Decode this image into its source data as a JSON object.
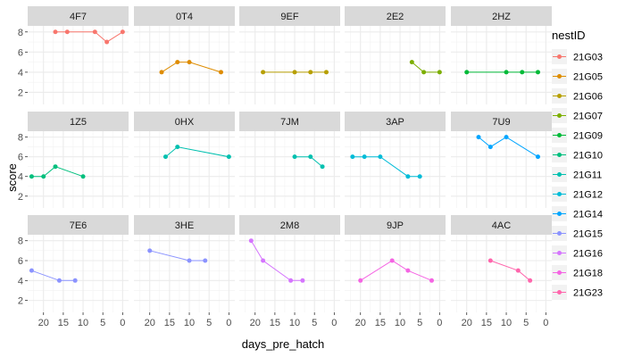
{
  "chart_data": {
    "type": "line",
    "facet_layout": "3 rows x 5 columns",
    "xlabel": "days_pre_hatch",
    "ylabel": "score",
    "x_reversed": true,
    "xlim": [
      24,
      -1.5
    ],
    "ylim": [
      0.8,
      8.6
    ],
    "xticks": [
      20,
      15,
      10,
      5,
      0
    ],
    "yticks": [
      2,
      4,
      6,
      8
    ],
    "grid": true,
    "legend_position": "right",
    "legend_title": "nestID",
    "legend": [
      {
        "name": "21G03",
        "color": "#F8766D"
      },
      {
        "name": "21G05",
        "color": "#DE8C00"
      },
      {
        "name": "21G06",
        "color": "#B79F00"
      },
      {
        "name": "21G07",
        "color": "#7CAE00"
      },
      {
        "name": "21G09",
        "color": "#00BA38"
      },
      {
        "name": "21G10",
        "color": "#00BF7D"
      },
      {
        "name": "21G11",
        "color": "#00C0AF"
      },
      {
        "name": "21G12",
        "color": "#00BCD8"
      },
      {
        "name": "21G14",
        "color": "#00A5FF"
      },
      {
        "name": "21G15",
        "color": "#8B93FF"
      },
      {
        "name": "21G16",
        "color": "#D575FE"
      },
      {
        "name": "21G18",
        "color": "#F564E3"
      },
      {
        "name": "21G23",
        "color": "#FF65AC"
      }
    ],
    "panels": [
      {
        "label": "4F7",
        "color": "#F8766D",
        "points": [
          [
            17,
            8
          ],
          [
            14,
            8
          ],
          [
            7,
            8
          ],
          [
            4,
            7
          ],
          [
            0,
            8
          ]
        ]
      },
      {
        "label": "0T4",
        "color": "#DE8C00",
        "points": [
          [
            17,
            4
          ],
          [
            13,
            5
          ],
          [
            10,
            5
          ],
          [
            2,
            4
          ]
        ]
      },
      {
        "label": "9EF",
        "color": "#B79F00",
        "points": [
          [
            18,
            4
          ],
          [
            10,
            4
          ],
          [
            6,
            4
          ],
          [
            2,
            4
          ]
        ]
      },
      {
        "label": "2E2",
        "color": "#7CAE00",
        "points": [
          [
            7,
            5
          ],
          [
            4,
            4
          ],
          [
            0,
            4
          ]
        ]
      },
      {
        "label": "2HZ",
        "color": "#00BA38",
        "points": [
          [
            20,
            4
          ],
          [
            10,
            4
          ],
          [
            6,
            4
          ],
          [
            2,
            4
          ]
        ]
      },
      {
        "label": "1Z5",
        "color": "#00BF7D",
        "points": [
          [
            23,
            4
          ],
          [
            20,
            4
          ],
          [
            17,
            5
          ],
          [
            10,
            4
          ]
        ]
      },
      {
        "label": "0HX",
        "color": "#00C0AF",
        "points": [
          [
            16,
            6
          ],
          [
            13,
            7
          ],
          [
            0,
            6
          ]
        ]
      },
      {
        "label": "7JM",
        "color": "#00C0AF",
        "points": [
          [
            10,
            6
          ],
          [
            6,
            6
          ],
          [
            3,
            5
          ]
        ]
      },
      {
        "label": "3AP",
        "color": "#00BCD8",
        "points": [
          [
            22,
            6
          ],
          [
            19,
            6
          ],
          [
            15,
            6
          ],
          [
            8,
            4
          ],
          [
            5,
            4
          ]
        ]
      },
      {
        "label": "7U9",
        "color": "#00A5FF",
        "points": [
          [
            17,
            8
          ],
          [
            14,
            7
          ],
          [
            10,
            8
          ],
          [
            2,
            6
          ]
        ]
      },
      {
        "label": "7E6",
        "color": "#8B93FF",
        "points": [
          [
            23,
            5
          ],
          [
            16,
            4
          ],
          [
            12,
            4
          ]
        ]
      },
      {
        "label": "3HE",
        "color": "#8B93FF",
        "points": [
          [
            20,
            7
          ],
          [
            10,
            6
          ],
          [
            6,
            6
          ]
        ]
      },
      {
        "label": "2M8",
        "color": "#D575FE",
        "points": [
          [
            21,
            8
          ],
          [
            18,
            6
          ],
          [
            11,
            4
          ],
          [
            8,
            4
          ]
        ]
      },
      {
        "label": "9JP",
        "color": "#F564E3",
        "points": [
          [
            20,
            4
          ],
          [
            12,
            6
          ],
          [
            8,
            5
          ],
          [
            2,
            4
          ]
        ]
      },
      {
        "label": "4AC",
        "color": "#FF65AC",
        "points": [
          [
            14,
            6
          ],
          [
            7,
            5
          ],
          [
            4,
            4
          ]
        ]
      }
    ]
  }
}
